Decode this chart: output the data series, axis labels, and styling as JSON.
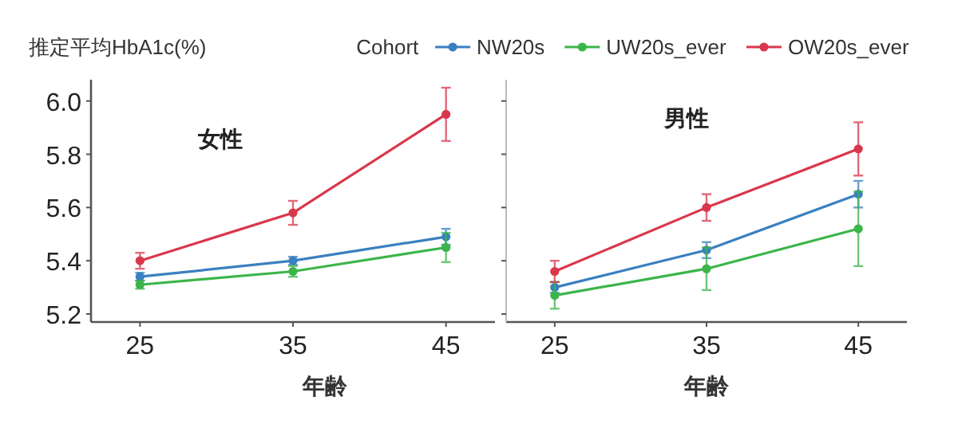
{
  "chart_data": [
    {
      "type": "line",
      "title": "女性",
      "xlabel": "年齢",
      "ylabel": "推定平均HbA1c(%)",
      "legend_title": "Cohort",
      "legend": "top",
      "marker": "circle",
      "grid": false,
      "x": [
        25,
        35,
        45
      ],
      "xlim": [
        21.8,
        48.2
      ],
      "xticks": [
        25,
        35,
        45
      ],
      "ylim": [
        5.17,
        6.08
      ],
      "yticks": [
        {
          "value": 5.2,
          "label": "5.2"
        },
        {
          "value": 5.4,
          "label": "5.4"
        },
        {
          "value": 5.6,
          "label": "5.6"
        },
        {
          "value": 5.8,
          "label": "5.8"
        },
        {
          "value": 6.0,
          "label": "6.0"
        }
      ],
      "series": [
        {
          "name": "NW20s",
          "color": "#3a80c0",
          "values": [
            5.34,
            5.4,
            5.49
          ],
          "errors": [
            0.015,
            0.015,
            0.03
          ]
        },
        {
          "name": "UW20s_ever",
          "color": "#3bb54a",
          "values": [
            5.31,
            5.36,
            5.45
          ],
          "errors": [
            0.015,
            0.02,
            0.055
          ]
        },
        {
          "name": "OW20s_ever",
          "color": "#d9374b",
          "values": [
            5.4,
            5.58,
            5.95
          ],
          "errors": [
            0.03,
            0.045,
            0.1
          ]
        }
      ]
    },
    {
      "type": "line",
      "title": "男性",
      "xlabel": "年齢",
      "legend": "top",
      "marker": "circle",
      "grid": false,
      "tick_labels": "x",
      "x": [
        25,
        35,
        45
      ],
      "xlim": [
        21.8,
        48.2
      ],
      "xticks": [
        25,
        35,
        45
      ],
      "ylim": [
        5.17,
        6.08
      ],
      "yticks": [
        {
          "value": 5.2,
          "label": null
        },
        {
          "value": 5.4,
          "label": null
        },
        {
          "value": 5.6,
          "label": null
        },
        {
          "value": 5.8,
          "label": null
        },
        {
          "value": 6.0,
          "label": null
        }
      ],
      "series": [
        {
          "name": "NW20s",
          "color": "#3a80c0",
          "values": [
            5.3,
            5.44,
            5.65
          ],
          "errors": [
            0.02,
            0.03,
            0.05
          ]
        },
        {
          "name": "UW20s_ever",
          "color": "#3bb54a",
          "values": [
            5.27,
            5.37,
            5.52
          ],
          "errors": [
            0.05,
            0.08,
            0.14
          ]
        },
        {
          "name": "OW20s_ever",
          "color": "#d9374b",
          "values": [
            5.36,
            5.6,
            5.82
          ],
          "errors": [
            0.04,
            0.05,
            0.1
          ]
        }
      ]
    }
  ]
}
